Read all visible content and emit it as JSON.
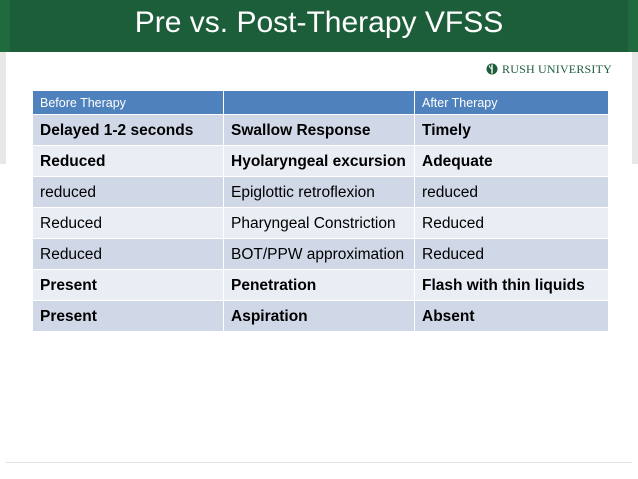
{
  "slide": {
    "title": "Pre vs. Post-Therapy VFSS",
    "logo_text": "RUSH UNIVERSITY"
  },
  "table": {
    "headers": [
      "Before Therapy",
      "",
      "After Therapy"
    ],
    "rows": [
      {
        "before": "Delayed 1-2 seconds",
        "measure": "Swallow Response",
        "after": "Timely",
        "bold": true
      },
      {
        "before": "Reduced",
        "measure": "Hyolaryngeal excursion",
        "after": "Adequate",
        "bold": true
      },
      {
        "before": "reduced",
        "measure": "Epiglottic retroflexion",
        "after": "reduced",
        "bold": false
      },
      {
        "before": "Reduced",
        "measure": "Pharyngeal Constriction",
        "after": "Reduced",
        "bold": false
      },
      {
        "before": "Reduced",
        "measure": "BOT/PPW approximation",
        "after": "Reduced",
        "bold": false
      },
      {
        "before": "Present",
        "measure": "Penetration",
        "after": "Flash with thin liquids",
        "bold": true
      },
      {
        "before": "Present",
        "measure": "Aspiration",
        "after": "Absent",
        "bold": true
      }
    ]
  },
  "colors": {
    "header_green": "#1d5e3a",
    "table_header": "#4f81bd",
    "row_dark": "#d0d8e8",
    "row_light": "#e9edf4"
  }
}
